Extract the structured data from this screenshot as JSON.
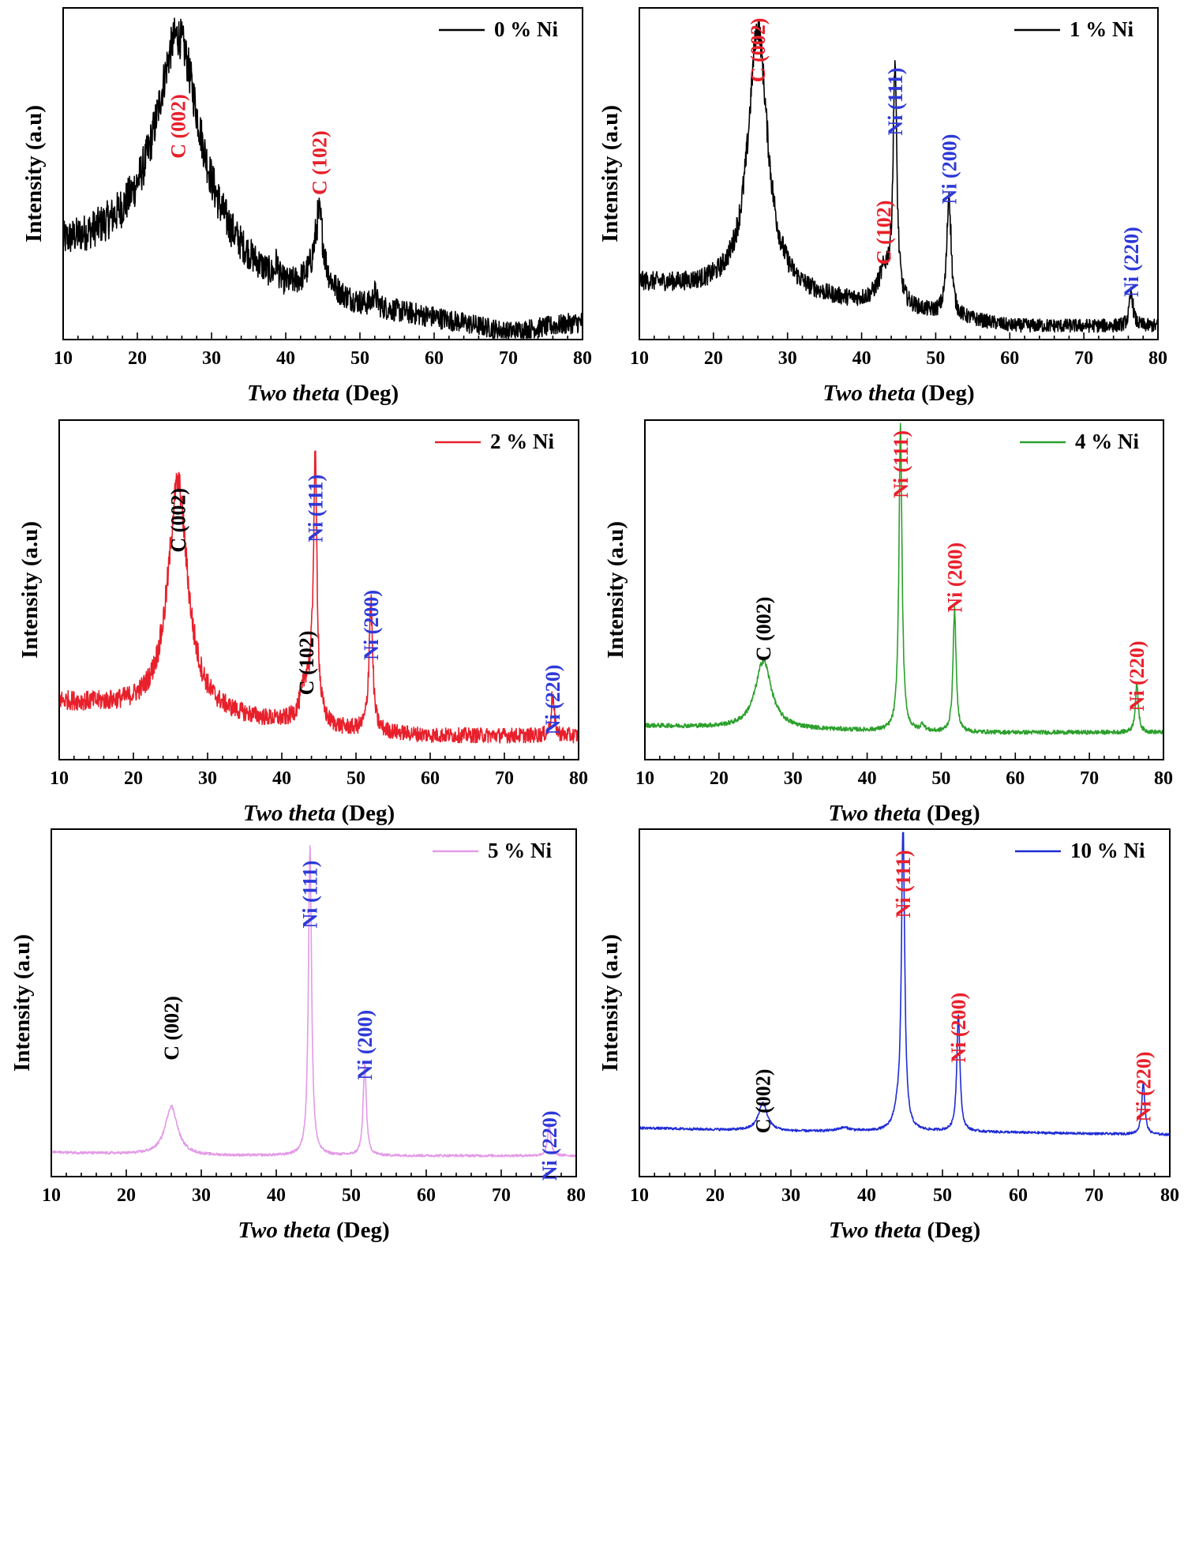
{
  "chart_data": [
    {
      "type": "line",
      "series": [
        {
          "name": "0 % Ni",
          "color": "#000000"
        }
      ],
      "xlabel_italic": "Two theta",
      "xlabel_rest": " (Deg)",
      "ylabel": "Intensity (a.u)",
      "xlim": [
        10,
        80
      ],
      "xticks": [
        10,
        20,
        30,
        40,
        50,
        60,
        70,
        80
      ],
      "ylim": [
        0,
        1
      ],
      "profile": {
        "baseline": [
          [
            10,
            0.27
          ],
          [
            25,
            0.3
          ],
          [
            40,
            0.12
          ],
          [
            60,
            0.06
          ],
          [
            70,
            0.02
          ],
          [
            80,
            0.05
          ]
        ],
        "peaks": [
          {
            "x": 25.5,
            "height": 0.62,
            "width": 3.6
          },
          {
            "x": 44.5,
            "height": 0.2,
            "width": 0.7
          },
          {
            "x": 44.0,
            "height": 0.05,
            "width": 2.5
          },
          {
            "x": 38.8,
            "height": 0.05,
            "width": 0.2
          },
          {
            "x": 52.0,
            "height": 0.04,
            "width": 0.3
          }
        ],
        "noise": 0.045
      },
      "annotations": [
        {
          "text": "C (002)",
          "x": 25.5,
          "color": "#e8202b"
        },
        {
          "text": "C (102)",
          "x": 44.5,
          "color": "#e8202b"
        }
      ]
    },
    {
      "type": "line",
      "series": [
        {
          "name": "1 % Ni",
          "color": "#000000"
        }
      ],
      "xlabel_italic": "Two theta",
      "xlabel_rest": " (Deg)",
      "ylabel": "Intensity (a.u)",
      "xlim": [
        10,
        80
      ],
      "xticks": [
        10,
        20,
        30,
        40,
        50,
        60,
        70,
        80
      ],
      "ylim": [
        0,
        1
      ],
      "profile": {
        "baseline": [
          [
            10,
            0.17
          ],
          [
            30,
            0.13
          ],
          [
            45,
            0.09
          ],
          [
            60,
            0.04
          ],
          [
            80,
            0.04
          ]
        ],
        "peaks": [
          {
            "x": 26.0,
            "height": 0.8,
            "width": 1.6
          },
          {
            "x": 44.5,
            "height": 0.7,
            "width": 0.3
          },
          {
            "x": 43.2,
            "height": 0.1,
            "width": 1.2
          },
          {
            "x": 51.8,
            "height": 0.37,
            "width": 0.35
          },
          {
            "x": 76.4,
            "height": 0.1,
            "width": 0.3
          }
        ],
        "noise": 0.03
      },
      "annotations": [
        {
          "text": "C (002)",
          "x": 26.0,
          "color": "#e8202b"
        },
        {
          "text": "Ni (111)",
          "x": 44.5,
          "color": "#2e39d8"
        },
        {
          "text": "C (102)",
          "x": 43.0,
          "color": "#e8202b"
        },
        {
          "text": "Ni (200)",
          "x": 51.8,
          "color": "#2e39d8"
        },
        {
          "text": "Ni (220)",
          "x": 76.4,
          "color": "#2e39d8"
        }
      ]
    },
    {
      "type": "line",
      "series": [
        {
          "name": "2 % Ni",
          "color": "#e8202b"
        }
      ],
      "xlabel_italic": "Two theta",
      "xlabel_rest": " (Deg)",
      "ylabel": "Intensity (a.u)",
      "xlim": [
        10,
        80
      ],
      "xticks": [
        10,
        20,
        30,
        40,
        50,
        60,
        70,
        80
      ],
      "ylim": [
        0,
        1
      ],
      "profile": {
        "baseline": [
          [
            10,
            0.17
          ],
          [
            30,
            0.13
          ],
          [
            45,
            0.09
          ],
          [
            60,
            0.07
          ],
          [
            80,
            0.07
          ]
        ],
        "peaks": [
          {
            "x": 26.0,
            "height": 0.68,
            "width": 1.6
          },
          {
            "x": 44.5,
            "height": 0.75,
            "width": 0.3
          },
          {
            "x": 43.3,
            "height": 0.12,
            "width": 0.9
          },
          {
            "x": 52.0,
            "height": 0.38,
            "width": 0.3
          },
          {
            "x": 76.5,
            "height": 0.12,
            "width": 0.25
          }
        ],
        "noise": 0.03
      },
      "annotations": [
        {
          "text": "C (002)",
          "x": 26.0,
          "color": "#000000"
        },
        {
          "text": "Ni (111)",
          "x": 44.5,
          "color": "#2e39d8"
        },
        {
          "text": "C (102)",
          "x": 43.3,
          "color": "#000000"
        },
        {
          "text": "Ni (200)",
          "x": 52.0,
          "color": "#2e39d8"
        },
        {
          "text": "Ni (220)",
          "x": 76.5,
          "color": "#2e39d8"
        }
      ]
    },
    {
      "type": "line",
      "series": [
        {
          "name": "4 % Ni",
          "color": "#2ca02c"
        }
      ],
      "xlabel_italic": "Two theta",
      "xlabel_rest": " (Deg)",
      "ylabel": "Intensity (a.u)",
      "xlim": [
        10,
        80
      ],
      "xticks": [
        10,
        20,
        30,
        40,
        50,
        60,
        70,
        80
      ],
      "ylim": [
        0,
        1
      ],
      "profile": {
        "baseline": [
          [
            10,
            0.1
          ],
          [
            30,
            0.09
          ],
          [
            50,
            0.08
          ],
          [
            80,
            0.08
          ]
        ],
        "peaks": [
          {
            "x": 26.0,
            "height": 0.2,
            "width": 1.3
          },
          {
            "x": 44.5,
            "height": 0.9,
            "width": 0.25
          },
          {
            "x": 51.8,
            "height": 0.36,
            "width": 0.25
          },
          {
            "x": 76.4,
            "height": 0.14,
            "width": 0.25
          },
          {
            "x": 47.5,
            "height": 0.02,
            "width": 0.3
          }
        ],
        "noise": 0.008
      },
      "annotations": [
        {
          "text": "C (002)",
          "x": 26.0,
          "color": "#000000"
        },
        {
          "text": "Ni (111)",
          "x": 44.5,
          "color": "#e8202b"
        },
        {
          "text": "Ni (200)",
          "x": 51.8,
          "color": "#e8202b"
        },
        {
          "text": "Ni (220)",
          "x": 76.4,
          "color": "#e8202b"
        }
      ]
    },
    {
      "type": "line",
      "series": [
        {
          "name": "5 % Ni",
          "color": "#e39ae6"
        }
      ],
      "xlabel_italic": "Two theta",
      "xlabel_rest": " (Deg)",
      "ylabel": "Intensity (a.u)",
      "xlim": [
        10,
        80
      ],
      "xticks": [
        10,
        20,
        30,
        40,
        50,
        60,
        70,
        80
      ],
      "ylim": [
        0,
        1
      ],
      "profile": {
        "baseline": [
          [
            10,
            0.07
          ],
          [
            30,
            0.06
          ],
          [
            50,
            0.06
          ],
          [
            80,
            0.06
          ]
        ],
        "peaks": [
          {
            "x": 26.0,
            "height": 0.14,
            "width": 1.0
          },
          {
            "x": 44.5,
            "height": 0.89,
            "width": 0.25
          },
          {
            "x": 51.8,
            "height": 0.27,
            "width": 0.25
          },
          {
            "x": 76.4,
            "height": 0.09,
            "width": 0.25
          }
        ],
        "noise": 0.005
      },
      "annotations": [
        {
          "text": "C (002)",
          "x": 26.0,
          "color": "#000000"
        },
        {
          "text": "Ni (111)",
          "x": 44.5,
          "color": "#2e39d8"
        },
        {
          "text": "Ni (200)",
          "x": 51.8,
          "color": "#2e39d8"
        },
        {
          "text": "Ni (220)",
          "x": 76.4,
          "color": "#2e39d8"
        }
      ]
    },
    {
      "type": "line",
      "series": [
        {
          "name": "10 % Ni",
          "color": "#1f2bd6"
        }
      ],
      "xlabel_italic": "Two theta",
      "xlabel_rest": " (Deg)",
      "ylabel": "Intensity (a.u)",
      "xlim": [
        10,
        80
      ],
      "xticks": [
        10,
        20,
        30,
        40,
        50,
        60,
        70,
        80
      ],
      "ylim": [
        0,
        1
      ],
      "profile": {
        "baseline": [
          [
            10,
            0.14
          ],
          [
            30,
            0.13
          ],
          [
            50,
            0.13
          ],
          [
            80,
            0.12
          ]
        ],
        "peaks": [
          {
            "x": 26.3,
            "height": 0.08,
            "width": 0.7
          },
          {
            "x": 44.8,
            "height": 0.89,
            "width": 0.25
          },
          {
            "x": 44.0,
            "height": 0.04,
            "width": 0.6
          },
          {
            "x": 52.1,
            "height": 0.34,
            "width": 0.25
          },
          {
            "x": 76.5,
            "height": 0.15,
            "width": 0.25
          },
          {
            "x": 37.0,
            "height": 0.01,
            "width": 1.0
          }
        ],
        "noise": 0.004
      },
      "annotations": [
        {
          "text": "C (002)",
          "x": 26.3,
          "color": "#000000"
        },
        {
          "text": "Ni (111)",
          "x": 44.8,
          "color": "#e8202b"
        },
        {
          "text": "Ni (200)",
          "x": 52.1,
          "color": "#e8202b"
        },
        {
          "text": "Ni (220)",
          "x": 76.5,
          "color": "#e8202b"
        }
      ]
    }
  ]
}
